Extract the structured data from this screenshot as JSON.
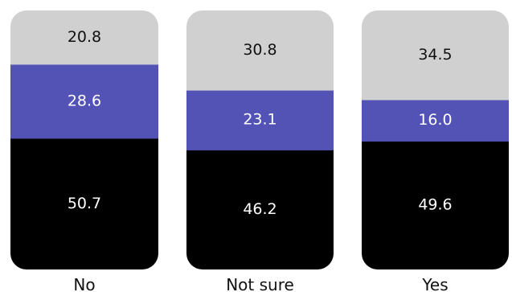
{
  "chart_data": {
    "type": "bar",
    "stacked": true,
    "percent_stacked": true,
    "categories": [
      "No",
      "Not sure",
      "Yes"
    ],
    "series": [
      {
        "values": [
          50.7,
          46.2,
          49.6
        ],
        "color": "#000000",
        "label_color": "#ffffff"
      },
      {
        "values": [
          28.6,
          23.1,
          16.0
        ],
        "color": "#5353b6",
        "label_color": "#ffffff"
      },
      {
        "values": [
          20.8,
          30.8,
          34.5
        ],
        "color": "#d0d0d0",
        "label_color": "#111111"
      }
    ],
    "value_labels": [
      [
        "50.7",
        "46.2",
        "49.6"
      ],
      [
        "28.6",
        "23.1",
        "16.0"
      ],
      [
        "20.8",
        "30.8",
        "34.5"
      ]
    ],
    "title": "",
    "xlabel": "",
    "ylabel": "",
    "ylim": [
      0,
      100
    ],
    "grid": false,
    "legend": "none"
  }
}
